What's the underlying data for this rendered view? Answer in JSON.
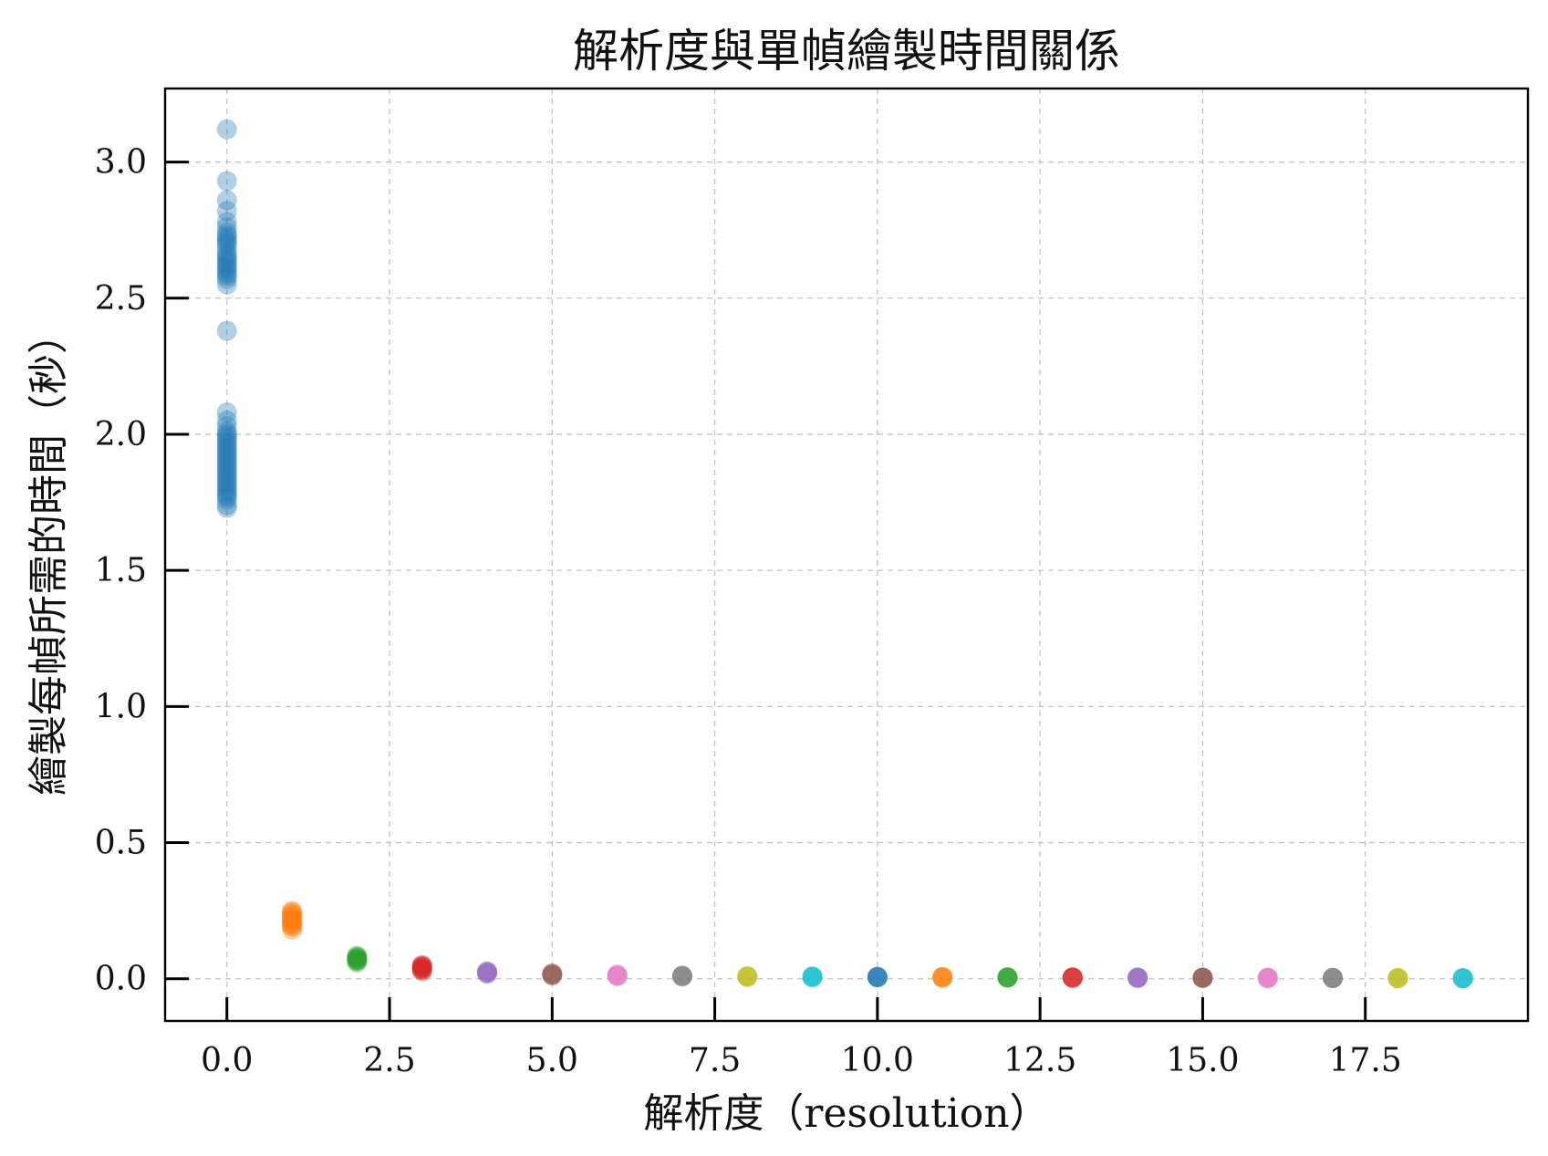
{
  "chart_data": {
    "type": "scatter",
    "title": "解析度與單幀繪製時間關係",
    "xlabel": "解析度（resolution）",
    "ylabel": "繪製每幀所需的時間（秒）",
    "xlim": [
      -0.95,
      20.0
    ],
    "ylim": [
      -0.155,
      3.27
    ],
    "xticks": [
      0.0,
      2.5,
      5.0,
      7.5,
      10.0,
      12.5,
      15.0,
      17.5
    ],
    "xtick_labels": [
      "0.0",
      "2.5",
      "5.0",
      "7.5",
      "10.0",
      "12.5",
      "15.0",
      "17.5"
    ],
    "yticks": [
      0.0,
      0.5,
      1.0,
      1.5,
      2.0,
      2.5,
      3.0
    ],
    "ytick_labels": [
      "0.0",
      "0.5",
      "1.0",
      "1.5",
      "2.0",
      "2.5",
      "3.0"
    ],
    "grid": true,
    "legend": false,
    "point_alpha": 0.35,
    "series": [
      {
        "color": "#1f77b4",
        "x": 0,
        "y": [
          3.12,
          2.93,
          2.86,
          2.82,
          2.78,
          2.76,
          2.74,
          2.73,
          2.72,
          2.71,
          2.7,
          2.69,
          2.67,
          2.66,
          2.65,
          2.64,
          2.63,
          2.62,
          2.61,
          2.6,
          2.59,
          2.58,
          2.57,
          2.55,
          2.38,
          2.08,
          2.05,
          2.03,
          2.01,
          2.0,
          1.99,
          1.98,
          1.97,
          1.96,
          1.95,
          1.94,
          1.93,
          1.92,
          1.91,
          1.9,
          1.89,
          1.88,
          1.87,
          1.86,
          1.85,
          1.84,
          1.83,
          1.82,
          1.81,
          1.8,
          1.79,
          1.78,
          1.77,
          1.76,
          1.74,
          1.73
        ]
      },
      {
        "color": "#ff7f0e",
        "x": 1,
        "y": [
          0.25,
          0.245,
          0.24,
          0.235,
          0.23,
          0.225,
          0.22,
          0.215,
          0.21,
          0.205,
          0.2,
          0.195,
          0.19,
          0.18
        ]
      },
      {
        "color": "#2ca02c",
        "x": 2,
        "y": [
          0.085,
          0.08,
          0.078,
          0.075,
          0.072,
          0.07,
          0.068,
          0.065,
          0.06
        ]
      },
      {
        "color": "#d62728",
        "x": 3,
        "y": [
          0.05,
          0.048,
          0.045,
          0.043,
          0.04,
          0.038,
          0.035,
          0.032,
          0.028
        ]
      },
      {
        "color": "#9467bd",
        "x": 4,
        "y": [
          0.028,
          0.026,
          0.024,
          0.022,
          0.02,
          0.018
        ]
      },
      {
        "color": "#8c564b",
        "x": 5,
        "y": [
          0.02,
          0.018,
          0.016,
          0.014,
          0.012
        ]
      },
      {
        "color": "#e377c2",
        "x": 6,
        "y": [
          0.016,
          0.014,
          0.012,
          0.01,
          0.009
        ]
      },
      {
        "color": "#7f7f7f",
        "x": 7,
        "y": [
          0.012,
          0.011,
          0.01,
          0.009,
          0.008
        ]
      },
      {
        "color": "#bcbd22",
        "x": 8,
        "y": [
          0.01,
          0.009,
          0.008,
          0.007,
          0.006
        ]
      },
      {
        "color": "#17becf",
        "x": 9,
        "y": [
          0.009,
          0.008,
          0.007,
          0.006,
          0.005
        ]
      },
      {
        "color": "#1f77b4",
        "x": 10,
        "y": [
          0.008,
          0.007,
          0.006,
          0.005,
          0.005
        ]
      },
      {
        "color": "#ff7f0e",
        "x": 11,
        "y": [
          0.007,
          0.006,
          0.005,
          0.005,
          0.004
        ]
      },
      {
        "color": "#2ca02c",
        "x": 12,
        "y": [
          0.006,
          0.005,
          0.005,
          0.004,
          0.004
        ]
      },
      {
        "color": "#d62728",
        "x": 13,
        "y": [
          0.006,
          0.005,
          0.004,
          0.004,
          0.003
        ]
      },
      {
        "color": "#9467bd",
        "x": 14,
        "y": [
          0.005,
          0.004,
          0.004,
          0.003,
          0.003
        ]
      },
      {
        "color": "#8c564b",
        "x": 15,
        "y": [
          0.005,
          0.004,
          0.003,
          0.003,
          0.003
        ]
      },
      {
        "color": "#e377c2",
        "x": 16,
        "y": [
          0.004,
          0.004,
          0.003,
          0.003,
          0.002
        ]
      },
      {
        "color": "#7f7f7f",
        "x": 17,
        "y": [
          0.004,
          0.003,
          0.003,
          0.002,
          0.002
        ]
      },
      {
        "color": "#bcbd22",
        "x": 18,
        "y": [
          0.003,
          0.003,
          0.002,
          0.002,
          0.002
        ]
      },
      {
        "color": "#17becf",
        "x": 19,
        "y": [
          0.003,
          0.002,
          0.002,
          0.002,
          0.001
        ]
      }
    ]
  }
}
